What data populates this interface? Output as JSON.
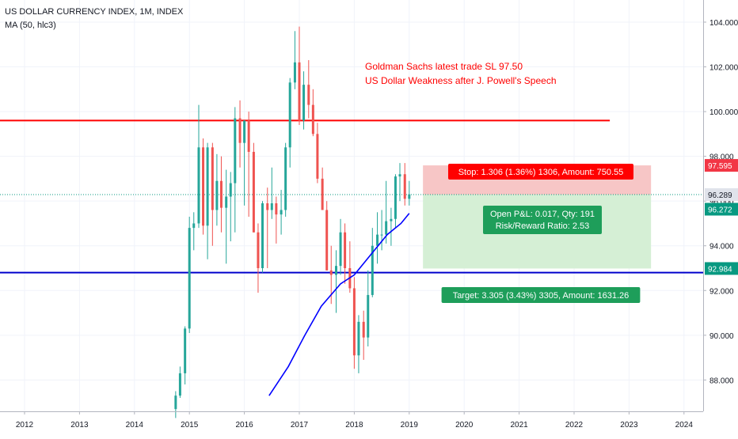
{
  "header": {
    "symbol_line": "US DOLLAR CURRENCY INDEX, 1M, INDEX",
    "indicator_line": "MA (50, hlc3)"
  },
  "annotation": {
    "line1": "Goldman Sachs latest trade SL 97.50",
    "line2": "US Dollar Weakness after J. Powell's Speech",
    "color": "#ff0000"
  },
  "position": {
    "stop_label": "Stop: 1.306 (1.36%) 1306, Amount: 750.55",
    "open_label_1": "Open P&L: 0.017, Qty: 191",
    "open_label_2": "Risk/Reward Ratio: 2.53",
    "target_label": "Target: 3.305 (3.43%) 3305, Amount: 1631.26",
    "stop_price": 97.595,
    "entry_price": 96.289,
    "target_price": 92.984
  },
  "price_tags": [
    {
      "text": "97.595",
      "value": 97.595,
      "color": "#f23645"
    },
    {
      "text": "96.289",
      "value": 96.289,
      "color": "#e0e3eb"
    },
    {
      "text": "96.272",
      "value": 96.272,
      "color": "#089981"
    },
    {
      "text": "92.984",
      "value": 92.984,
      "color": "#089981"
    }
  ],
  "colors": {
    "up": "#26a69a",
    "down": "#ef5350",
    "ma": "#0000ff",
    "resistance": "#ff0000",
    "support": "#0000cc",
    "stop_zone": "#f7c6c6",
    "target_zone": "#d5efd5",
    "label_red": "#ff0000",
    "label_green": "#089981"
  },
  "chart_data": {
    "type": "candlestick",
    "title": "US DOLLAR CURRENCY INDEX, 1M, INDEX",
    "x_tick_labels": [
      "2012",
      "2013",
      "2014",
      "2015",
      "2016",
      "2017",
      "2018",
      "2019",
      "2020",
      "2021",
      "2022",
      "2023",
      "2024"
    ],
    "y_tick_labels": [
      "88.000",
      "90.000",
      "92.000",
      "94.000",
      "96.000",
      "98.000",
      "100.000",
      "102.000",
      "104.000"
    ],
    "ylim": [
      87.2,
      105.6
    ],
    "horizontal_lines": [
      {
        "name": "resistance",
        "value": 99.6,
        "color": "#ff0000"
      },
      {
        "name": "support",
        "value": 92.8,
        "color": "#0000cc"
      }
    ],
    "ma_points": [
      [
        2016.45,
        87.3
      ],
      [
        2016.8,
        88.6
      ],
      [
        2017.1,
        90.0
      ],
      [
        2017.4,
        91.3
      ],
      [
        2017.75,
        92.3
      ],
      [
        2018.0,
        92.7
      ],
      [
        2018.3,
        93.6
      ],
      [
        2018.6,
        94.5
      ],
      [
        2018.85,
        95.0
      ],
      [
        2019.0,
        95.45
      ]
    ],
    "candles": [
      {
        "t": 2014.75,
        "o": 86.7,
        "h": 87.5,
        "l": 86.3,
        "c": 87.3
      },
      {
        "t": 2014.83,
        "o": 87.3,
        "h": 88.6,
        "l": 87.2,
        "c": 88.3
      },
      {
        "t": 2014.92,
        "o": 88.3,
        "h": 90.4,
        "l": 87.8,
        "c": 90.3
      },
      {
        "t": 2015.0,
        "o": 90.3,
        "h": 95.3,
        "l": 90.1,
        "c": 94.8
      },
      {
        "t": 2015.08,
        "o": 94.8,
        "h": 95.5,
        "l": 93.8,
        "c": 95.0
      },
      {
        "t": 2015.17,
        "o": 95.0,
        "h": 100.3,
        "l": 94.8,
        "c": 98.4
      },
      {
        "t": 2015.25,
        "o": 98.4,
        "h": 98.8,
        "l": 94.5,
        "c": 94.9
      },
      {
        "t": 2015.33,
        "o": 94.9,
        "h": 98.6,
        "l": 93.4,
        "c": 98.4
      },
      {
        "t": 2015.42,
        "o": 98.4,
        "h": 98.6,
        "l": 94.0,
        "c": 95.6
      },
      {
        "t": 2015.5,
        "o": 95.6,
        "h": 98.1,
        "l": 94.9,
        "c": 96.9
      },
      {
        "t": 2015.58,
        "o": 96.9,
        "h": 98.0,
        "l": 94.6,
        "c": 95.7
      },
      {
        "t": 2015.67,
        "o": 95.7,
        "h": 97.4,
        "l": 93.2,
        "c": 96.2
      },
      {
        "t": 2015.75,
        "o": 96.2,
        "h": 97.3,
        "l": 94.2,
        "c": 96.8
      },
      {
        "t": 2015.83,
        "o": 96.8,
        "h": 100.2,
        "l": 94.6,
        "c": 99.7
      },
      {
        "t": 2015.92,
        "o": 99.7,
        "h": 100.5,
        "l": 97.5,
        "c": 98.6
      },
      {
        "t": 2016.0,
        "o": 98.6,
        "h": 99.6,
        "l": 95.8,
        "c": 99.6
      },
      {
        "t": 2016.08,
        "o": 99.6,
        "h": 100.0,
        "l": 95.3,
        "c": 98.2
      },
      {
        "t": 2016.17,
        "o": 98.2,
        "h": 98.6,
        "l": 94.6,
        "c": 94.6
      },
      {
        "t": 2016.25,
        "o": 94.6,
        "h": 95.0,
        "l": 91.9,
        "c": 93.0
      },
      {
        "t": 2016.33,
        "o": 93.0,
        "h": 96.0,
        "l": 92.8,
        "c": 95.9
      },
      {
        "t": 2016.42,
        "o": 95.9,
        "h": 96.6,
        "l": 93.0,
        "c": 95.6
      },
      {
        "t": 2016.5,
        "o": 95.6,
        "h": 97.5,
        "l": 95.2,
        "c": 95.9
      },
      {
        "t": 2016.58,
        "o": 95.9,
        "h": 96.2,
        "l": 94.1,
        "c": 95.4
      },
      {
        "t": 2016.67,
        "o": 95.4,
        "h": 96.5,
        "l": 94.5,
        "c": 95.6
      },
      {
        "t": 2016.75,
        "o": 95.6,
        "h": 98.6,
        "l": 95.3,
        "c": 98.4
      },
      {
        "t": 2016.83,
        "o": 98.4,
        "h": 101.5,
        "l": 97.5,
        "c": 101.3
      },
      {
        "t": 2016.92,
        "o": 101.3,
        "h": 103.6,
        "l": 101.0,
        "c": 102.2
      },
      {
        "t": 2017.0,
        "o": 102.2,
        "h": 103.8,
        "l": 99.4,
        "c": 99.6
      },
      {
        "t": 2017.08,
        "o": 99.6,
        "h": 101.8,
        "l": 99.2,
        "c": 101.2
      },
      {
        "t": 2017.17,
        "o": 101.2,
        "h": 102.3,
        "l": 99.7,
        "c": 100.3
      },
      {
        "t": 2017.25,
        "o": 100.3,
        "h": 101.0,
        "l": 98.9,
        "c": 99.0
      },
      {
        "t": 2017.33,
        "o": 99.0,
        "h": 99.5,
        "l": 96.8,
        "c": 97.0
      },
      {
        "t": 2017.42,
        "o": 97.0,
        "h": 97.5,
        "l": 95.6,
        "c": 95.6
      },
      {
        "t": 2017.5,
        "o": 95.6,
        "h": 96.0,
        "l": 92.9,
        "c": 92.9
      },
      {
        "t": 2017.58,
        "o": 92.9,
        "h": 94.0,
        "l": 91.4,
        "c": 92.7
      },
      {
        "t": 2017.67,
        "o": 92.7,
        "h": 93.8,
        "l": 91.0,
        "c": 93.1
      },
      {
        "t": 2017.75,
        "o": 93.1,
        "h": 95.2,
        "l": 92.7,
        "c": 94.6
      },
      {
        "t": 2017.83,
        "o": 94.6,
        "h": 95.0,
        "l": 92.3,
        "c": 93.0
      },
      {
        "t": 2017.92,
        "o": 93.0,
        "h": 94.2,
        "l": 91.9,
        "c": 92.1
      },
      {
        "t": 2018.0,
        "o": 92.1,
        "h": 92.6,
        "l": 88.5,
        "c": 89.1
      },
      {
        "t": 2018.08,
        "o": 89.1,
        "h": 90.9,
        "l": 88.3,
        "c": 90.6
      },
      {
        "t": 2018.17,
        "o": 90.6,
        "h": 91.1,
        "l": 88.9,
        "c": 89.9
      },
      {
        "t": 2018.25,
        "o": 89.9,
        "h": 92.9,
        "l": 89.5,
        "c": 91.8
      },
      {
        "t": 2018.33,
        "o": 91.8,
        "h": 94.8,
        "l": 91.7,
        "c": 94.0
      },
      {
        "t": 2018.42,
        "o": 94.0,
        "h": 95.5,
        "l": 93.2,
        "c": 94.5
      },
      {
        "t": 2018.5,
        "o": 94.5,
        "h": 95.6,
        "l": 93.8,
        "c": 94.5
      },
      {
        "t": 2018.58,
        "o": 94.5,
        "h": 96.9,
        "l": 94.1,
        "c": 95.1
      },
      {
        "t": 2018.67,
        "o": 95.1,
        "h": 95.7,
        "l": 94.0,
        "c": 95.2
      },
      {
        "t": 2018.75,
        "o": 95.2,
        "h": 97.2,
        "l": 94.8,
        "c": 97.1
      },
      {
        "t": 2018.83,
        "o": 97.1,
        "h": 97.7,
        "l": 96.0,
        "c": 97.2
      },
      {
        "t": 2018.92,
        "o": 97.2,
        "h": 97.7,
        "l": 95.8,
        "c": 96.1
      },
      {
        "t": 2019.0,
        "o": 96.1,
        "h": 96.9,
        "l": 95.8,
        "c": 96.3
      }
    ]
  }
}
